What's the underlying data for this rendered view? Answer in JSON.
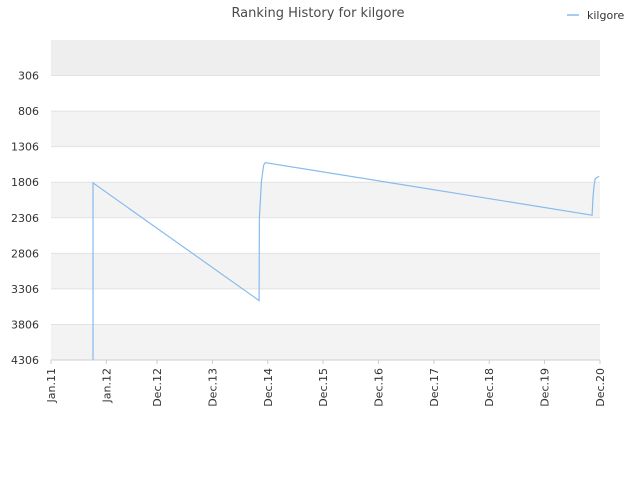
{
  "chart_data": {
    "type": "line",
    "title": "Ranking History for kilgore",
    "legend": {
      "position": "top-right",
      "entries": [
        "kilgore"
      ]
    },
    "y_axis": {
      "inverted": true,
      "ticks": [
        306,
        806,
        1306,
        1806,
        2306,
        2806,
        3306,
        3806,
        4306
      ],
      "tick_labels": [
        "306",
        "806",
        "1306",
        "1806",
        "2306",
        "2806",
        "3306",
        "3806",
        "4306"
      ],
      "range": [
        -194,
        4306
      ]
    },
    "x_axis": {
      "tick_labels": [
        "Jan.11",
        "Jan.12",
        "Dec.12",
        "Dec.13",
        "Dec.14",
        "Dec.15",
        "Dec.16",
        "Dec.17",
        "Dec.18",
        "Dec.19",
        "Dec.20"
      ],
      "tick_dates": [
        "2011-01-01",
        "2012-01-01",
        "2012-12-01",
        "2013-12-01",
        "2014-12-01",
        "2015-12-01",
        "2016-12-01",
        "2017-12-01",
        "2018-12-01",
        "2019-12-01",
        "2020-12-01"
      ],
      "range": [
        "2011-01-01",
        "2020-12-01"
      ]
    },
    "grid": true,
    "series": [
      {
        "name": "kilgore",
        "color": "#88bbee",
        "points": [
          {
            "x": "2011-10-05",
            "y": 4306
          },
          {
            "x": "2011-10-05",
            "y": 1815
          },
          {
            "x": "2014-10-05",
            "y": 3470
          },
          {
            "x": "2014-10-07",
            "y": 2300
          },
          {
            "x": "2014-10-20",
            "y": 1800
          },
          {
            "x": "2014-11-01",
            "y": 1610
          },
          {
            "x": "2014-11-05",
            "y": 1560
          },
          {
            "x": "2014-11-15",
            "y": 1530
          },
          {
            "x": "2020-10-10",
            "y": 2270
          },
          {
            "x": "2020-10-15",
            "y": 2040
          },
          {
            "x": "2020-10-22",
            "y": 1870
          },
          {
            "x": "2020-10-30",
            "y": 1760
          },
          {
            "x": "2020-11-25",
            "y": 1720
          }
        ]
      }
    ]
  }
}
